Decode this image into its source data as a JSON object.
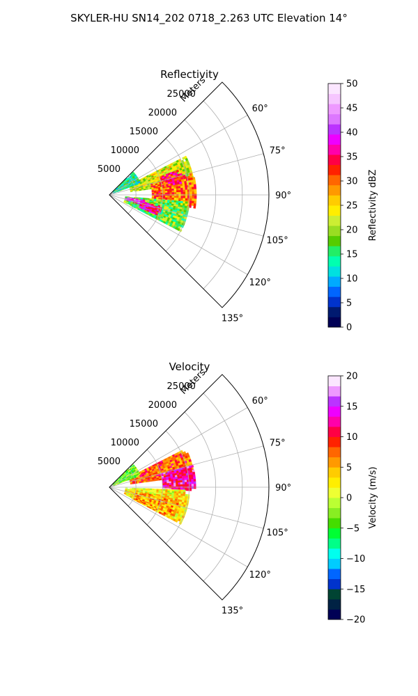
{
  "figure": {
    "title": "SKYLER-HU  SN14_202  0718_2.263 UTC Elevation 14°"
  },
  "colors": {
    "grid": "#b0b0b0",
    "frame": "#000000",
    "reflectivity_stops": [
      "#000055",
      "#001a70",
      "#0033cc",
      "#0066ff",
      "#00aaff",
      "#00e0e0",
      "#00ffb0",
      "#22ee66",
      "#55cc00",
      "#99dd22",
      "#ccee33",
      "#ffee00",
      "#ffcc00",
      "#ff9900",
      "#ff6600",
      "#ff2200",
      "#ff0044",
      "#ff00aa",
      "#ee00ff",
      "#bb33ff",
      "#dd77ff",
      "#ee99ff",
      "#f6c6ff",
      "#fbe6ff"
    ],
    "velocity_stops": [
      "#000055",
      "#002244",
      "#004433",
      "#0033cc",
      "#0066ff",
      "#00ccff",
      "#00ffee",
      "#00ff88",
      "#00ff33",
      "#44dd00",
      "#88ee22",
      "#bbff33",
      "#eeff33",
      "#ffee00",
      "#ffcc00",
      "#ff9900",
      "#ff6600",
      "#ff2200",
      "#ff0044",
      "#ff00aa",
      "#ee00ff",
      "#bb33ff",
      "#ee99ff",
      "#fbe6ff"
    ]
  },
  "panels": [
    {
      "title": "Reflectivity",
      "range_label": "Meters",
      "radial_ticks": [
        "5000",
        "10000",
        "15000",
        "20000",
        "25000"
      ],
      "angle_ticks": [
        "60°",
        "75°",
        "90°",
        "105°",
        "120°",
        "135°"
      ],
      "colorbar": {
        "label": "Reflectivity dBZ",
        "min": 0,
        "max": 50,
        "ticks": [
          "0",
          "5",
          "10",
          "15",
          "20",
          "25",
          "30",
          "35",
          "40",
          "45",
          "50"
        ]
      }
    },
    {
      "title": "Velocity",
      "range_label": "Meters",
      "radial_ticks": [
        "5000",
        "10000",
        "15000",
        "20000",
        "25000"
      ],
      "angle_ticks": [
        "60°",
        "75°",
        "90°",
        "105°",
        "120°",
        "135°"
      ],
      "colorbar": {
        "label": "Velocity (m/s)",
        "min": -20,
        "max": 20,
        "ticks": [
          "−20",
          "−15",
          "−10",
          "−5",
          "0",
          "5",
          "10",
          "15",
          "20"
        ]
      }
    }
  ],
  "chart_data": [
    {
      "type": "heatmap",
      "title": "Reflectivity",
      "projection": "polar",
      "theta_range_deg": [
        45,
        135
      ],
      "r_range_m": [
        0,
        30000
      ],
      "r_ticks_m": [
        5000,
        10000,
        15000,
        20000,
        25000
      ],
      "theta_ticks_deg": [
        60,
        75,
        90,
        105,
        120,
        135
      ],
      "colorbar_label": "Reflectivity dBZ",
      "value_range": [
        0,
        50
      ],
      "echo_regions": [
        {
          "theta_deg": [
            63,
            82
          ],
          "r_m": [
            4000,
            16000
          ],
          "value": 22
        },
        {
          "theta_deg": [
            75,
            98
          ],
          "r_m": [
            8000,
            16000
          ],
          "value": 30
        },
        {
          "theta_deg": [
            95,
            116
          ],
          "r_m": [
            3000,
            15000
          ],
          "value": 18
        },
        {
          "theta_deg": [
            98,
            106
          ],
          "r_m": [
            3000,
            7000
          ],
          "value": 40
        },
        {
          "theta_deg": [
            102,
            112
          ],
          "r_m": [
            6000,
            10000
          ],
          "value": 36
        },
        {
          "theta_deg": [
            70,
            80
          ],
          "r_m": [
            10000,
            14000
          ],
          "value": 34
        },
        {
          "theta_deg": [
            46,
            70
          ],
          "r_m": [
            800,
            6000
          ],
          "value": 14
        }
      ]
    },
    {
      "type": "heatmap",
      "title": "Velocity",
      "projection": "polar",
      "theta_range_deg": [
        45,
        135
      ],
      "r_range_m": [
        0,
        30000
      ],
      "r_ticks_m": [
        5000,
        10000,
        15000,
        20000,
        25000
      ],
      "theta_ticks_deg": [
        60,
        75,
        90,
        105,
        120,
        135
      ],
      "colorbar_label": "Velocity (m/s)",
      "value_range": [
        -20,
        20
      ],
      "echo_regions": [
        {
          "theta_deg": [
            63,
            82
          ],
          "r_m": [
            4000,
            16000
          ],
          "value": 8
        },
        {
          "theta_deg": [
            75,
            92
          ],
          "r_m": [
            10000,
            16000
          ],
          "value": 13
        },
        {
          "theta_deg": [
            92,
            116
          ],
          "r_m": [
            3000,
            15000
          ],
          "value": 2
        },
        {
          "theta_deg": [
            100,
            116
          ],
          "r_m": [
            5000,
            13000
          ],
          "value": 5
        },
        {
          "theta_deg": [
            46,
            70
          ],
          "r_m": [
            800,
            6000
          ],
          "value": -3
        }
      ]
    }
  ]
}
